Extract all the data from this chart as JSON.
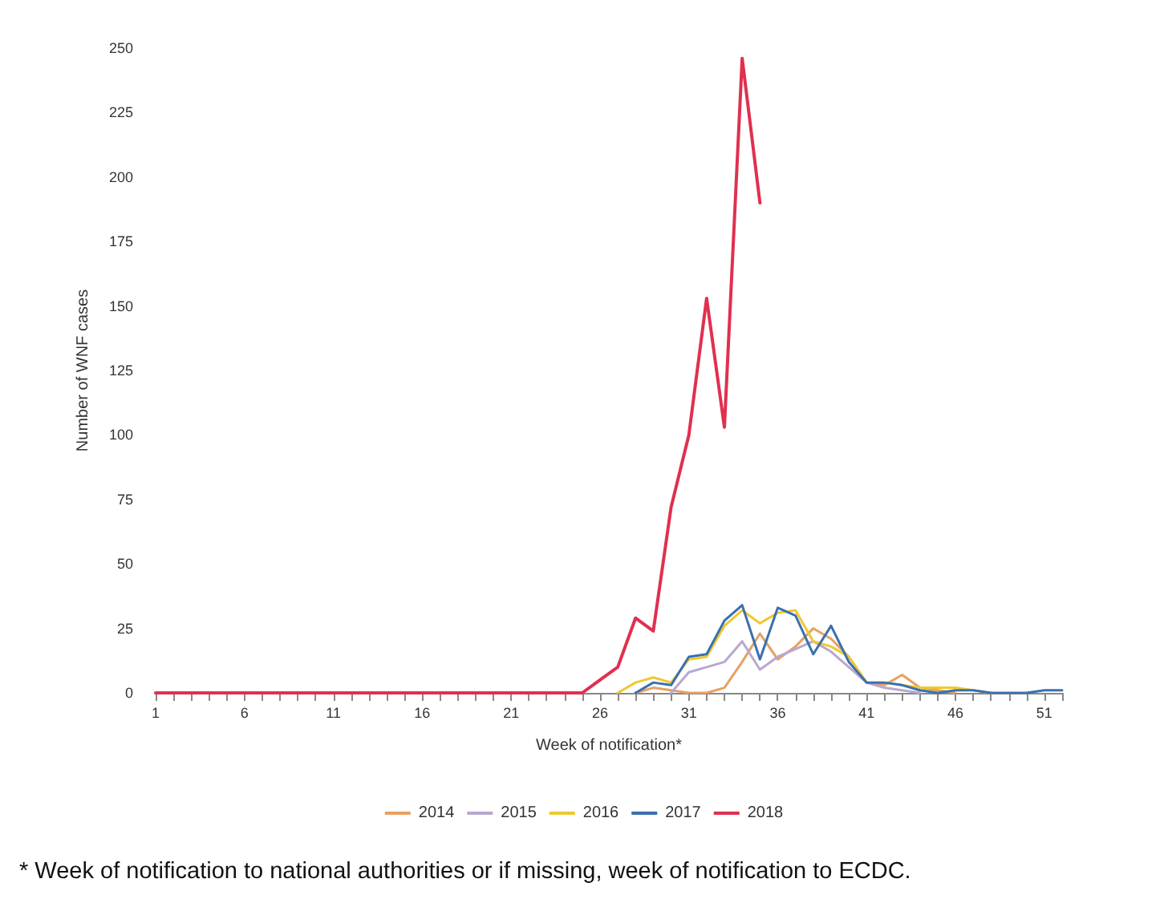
{
  "chart_data": {
    "type": "line",
    "xlabel": "Week of notification*",
    "ylabel": "Number of WNF cases",
    "x": [
      1,
      2,
      3,
      4,
      5,
      6,
      7,
      8,
      9,
      10,
      11,
      12,
      13,
      14,
      15,
      16,
      17,
      18,
      19,
      20,
      21,
      22,
      23,
      24,
      25,
      26,
      27,
      28,
      29,
      30,
      31,
      32,
      33,
      34,
      35,
      36,
      37,
      38,
      39,
      40,
      41,
      42,
      43,
      44,
      45,
      46,
      47,
      48,
      49,
      50,
      51,
      52
    ],
    "xlim": [
      1,
      52
    ],
    "xticks": [
      1,
      {
        "value": 2,
        "label": null
      },
      {
        "value": 3,
        "label": null
      },
      {
        "value": 4,
        "label": null
      },
      {
        "value": 5,
        "label": null
      },
      6,
      {
        "value": 7,
        "label": null
      },
      {
        "value": 8,
        "label": null
      },
      {
        "value": 9,
        "label": null
      },
      {
        "value": 10,
        "label": null
      },
      11,
      {
        "value": 12,
        "label": null
      },
      {
        "value": 13,
        "label": null
      },
      {
        "value": 14,
        "label": null
      },
      {
        "value": 15,
        "label": null
      },
      16,
      {
        "value": 17,
        "label": null
      },
      {
        "value": 18,
        "label": null
      },
      {
        "value": 19,
        "label": null
      },
      {
        "value": 20,
        "label": null
      },
      21,
      {
        "value": 22,
        "label": null
      },
      {
        "value": 23,
        "label": null
      },
      {
        "value": 24,
        "label": null
      },
      {
        "value": 25,
        "label": null
      },
      26,
      {
        "value": 27,
        "label": null
      },
      {
        "value": 28,
        "label": null
      },
      {
        "value": 29,
        "label": null
      },
      {
        "value": 30,
        "label": null
      },
      31,
      {
        "value": 32,
        "label": null
      },
      {
        "value": 33,
        "label": null
      },
      {
        "value": 34,
        "label": null
      },
      {
        "value": 35,
        "label": null
      },
      36,
      {
        "value": 37,
        "label": null
      },
      {
        "value": 38,
        "label": null
      },
      {
        "value": 39,
        "label": null
      },
      {
        "value": 40,
        "label": null
      },
      41,
      {
        "value": 42,
        "label": null
      },
      {
        "value": 43,
        "label": null
      },
      {
        "value": 44,
        "label": null
      },
      {
        "value": 45,
        "label": null
      },
      46,
      {
        "value": 47,
        "label": null
      },
      {
        "value": 48,
        "label": null
      },
      {
        "value": 49,
        "label": null
      },
      {
        "value": 50,
        "label": null
      },
      51,
      {
        "value": 52,
        "label": null
      }
    ],
    "series": [
      {
        "name": "2014",
        "color": "#e8a060",
        "values": [
          null,
          null,
          null,
          null,
          null,
          null,
          null,
          null,
          null,
          null,
          null,
          null,
          null,
          null,
          null,
          null,
          null,
          null,
          null,
          null,
          null,
          null,
          null,
          null,
          null,
          null,
          null,
          0,
          2,
          1,
          0,
          0,
          2,
          12,
          23,
          13,
          18,
          25,
          21,
          14,
          4,
          3,
          7,
          2,
          1,
          0,
          null,
          null,
          null,
          null,
          null,
          null
        ]
      },
      {
        "name": "2015",
        "color": "#b8a8d0",
        "values": [
          null,
          null,
          null,
          null,
          null,
          null,
          null,
          null,
          null,
          null,
          null,
          null,
          null,
          null,
          null,
          null,
          null,
          null,
          null,
          null,
          null,
          null,
          null,
          null,
          null,
          null,
          null,
          null,
          null,
          0,
          8,
          10,
          12,
          20,
          9,
          14,
          17,
          20,
          16,
          10,
          4,
          2,
          1,
          0,
          null,
          null,
          null,
          null,
          null,
          null,
          null,
          null
        ]
      },
      {
        "name": "2016",
        "color": "#f0c830",
        "values": [
          null,
          null,
          null,
          null,
          null,
          null,
          null,
          null,
          null,
          null,
          null,
          null,
          null,
          null,
          null,
          null,
          null,
          null,
          null,
          null,
          null,
          null,
          null,
          null,
          null,
          null,
          0,
          4,
          6,
          4,
          13,
          14,
          26,
          32,
          27,
          31,
          32,
          20,
          18,
          14,
          4,
          4,
          3,
          2,
          2,
          2,
          1,
          0,
          null,
          null,
          null,
          null
        ]
      },
      {
        "name": "2017",
        "color": "#3a70b0",
        "values": [
          null,
          null,
          null,
          null,
          null,
          null,
          null,
          null,
          null,
          null,
          null,
          null,
          null,
          null,
          null,
          null,
          null,
          null,
          null,
          null,
          null,
          null,
          null,
          null,
          null,
          null,
          null,
          0,
          4,
          3,
          14,
          15,
          28,
          34,
          13,
          33,
          30,
          15,
          26,
          12,
          4,
          4,
          3,
          1,
          0,
          1,
          1,
          0,
          0,
          0,
          1,
          1
        ]
      },
      {
        "name": "2018",
        "color": "#e03050",
        "values": [
          0,
          0,
          0,
          0,
          0,
          0,
          0,
          0,
          0,
          0,
          0,
          0,
          0,
          0,
          0,
          0,
          0,
          0,
          0,
          0,
          0,
          0,
          0,
          0,
          0,
          5,
          10,
          29,
          24,
          72,
          100,
          153,
          103,
          246,
          190,
          null,
          null,
          null,
          null,
          null,
          null,
          null,
          null,
          null,
          null,
          null,
          null,
          null,
          null,
          null,
          null,
          null
        ]
      }
    ],
    "ylim": [
      0,
      250
    ],
    "yticks": [
      0,
      25,
      50,
      75,
      100,
      125,
      150,
      175,
      200,
      225,
      250
    ],
    "grid": false,
    "legend": "bottom",
    "marker": "none",
    "line_style": "solid",
    "annotations": [
      "* Week of notification to national authorities or if missing, week of notification to ECDC."
    ]
  }
}
